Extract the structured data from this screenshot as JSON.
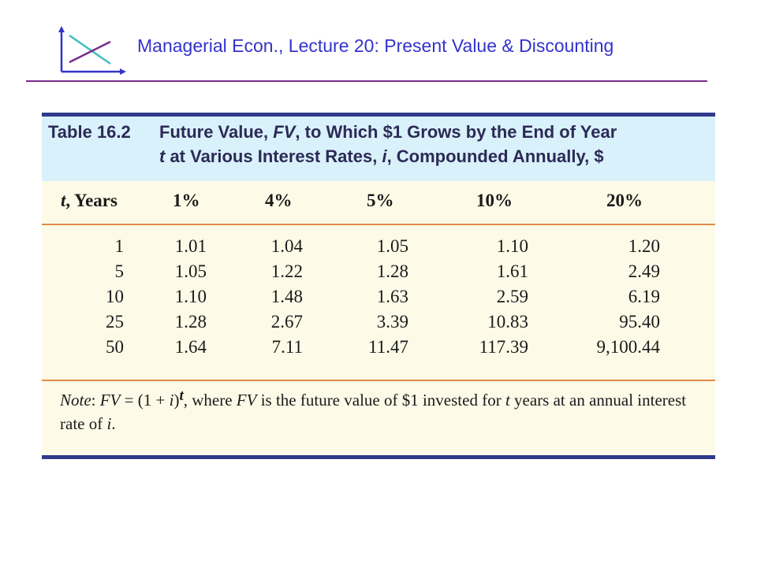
{
  "header": {
    "title": "Managerial Econ., Lecture 20:  Present Value & Discounting"
  },
  "logo": {
    "icon": "axes-crossing-lines-icon",
    "colors": [
      "#3333cc",
      "#7a2a8a",
      "#3fbfbf"
    ]
  },
  "table": {
    "label": "Table 16.2",
    "caption_line1": "Future Value, FV, to Which $1 Grows by the End of Year",
    "caption_line2": "t at Various Interest Rates, i, Compounded Annually, $",
    "columns": [
      "t, Years",
      "1%",
      "4%",
      "5%",
      "10%",
      "20%"
    ],
    "rows": [
      [
        "1",
        "1.01",
        "1.04",
        "1.05",
        "1.10",
        "1.20"
      ],
      [
        "5",
        "1.05",
        "1.22",
        "1.28",
        "1.61",
        "2.49"
      ],
      [
        "10",
        "1.10",
        "1.48",
        "1.63",
        "2.59",
        "6.19"
      ],
      [
        "25",
        "1.28",
        "2.67",
        "3.39",
        "10.83",
        "95.40"
      ],
      [
        "50",
        "1.64",
        "7.11",
        "11.47",
        "117.39",
        "9,100.44"
      ]
    ],
    "note": {
      "prefix": "Note",
      "formula": "FV = (1 + i)",
      "exponent": "t",
      "text": ", where FV is the future value of $1 invested for t years at an annual interest rate of i."
    },
    "colors": {
      "caption_band": "#d9f1fa",
      "body": "#fdfbe8",
      "frame": "#2f3a8c",
      "rules": "#e08a45",
      "caption_text": "#2c2a56"
    }
  }
}
